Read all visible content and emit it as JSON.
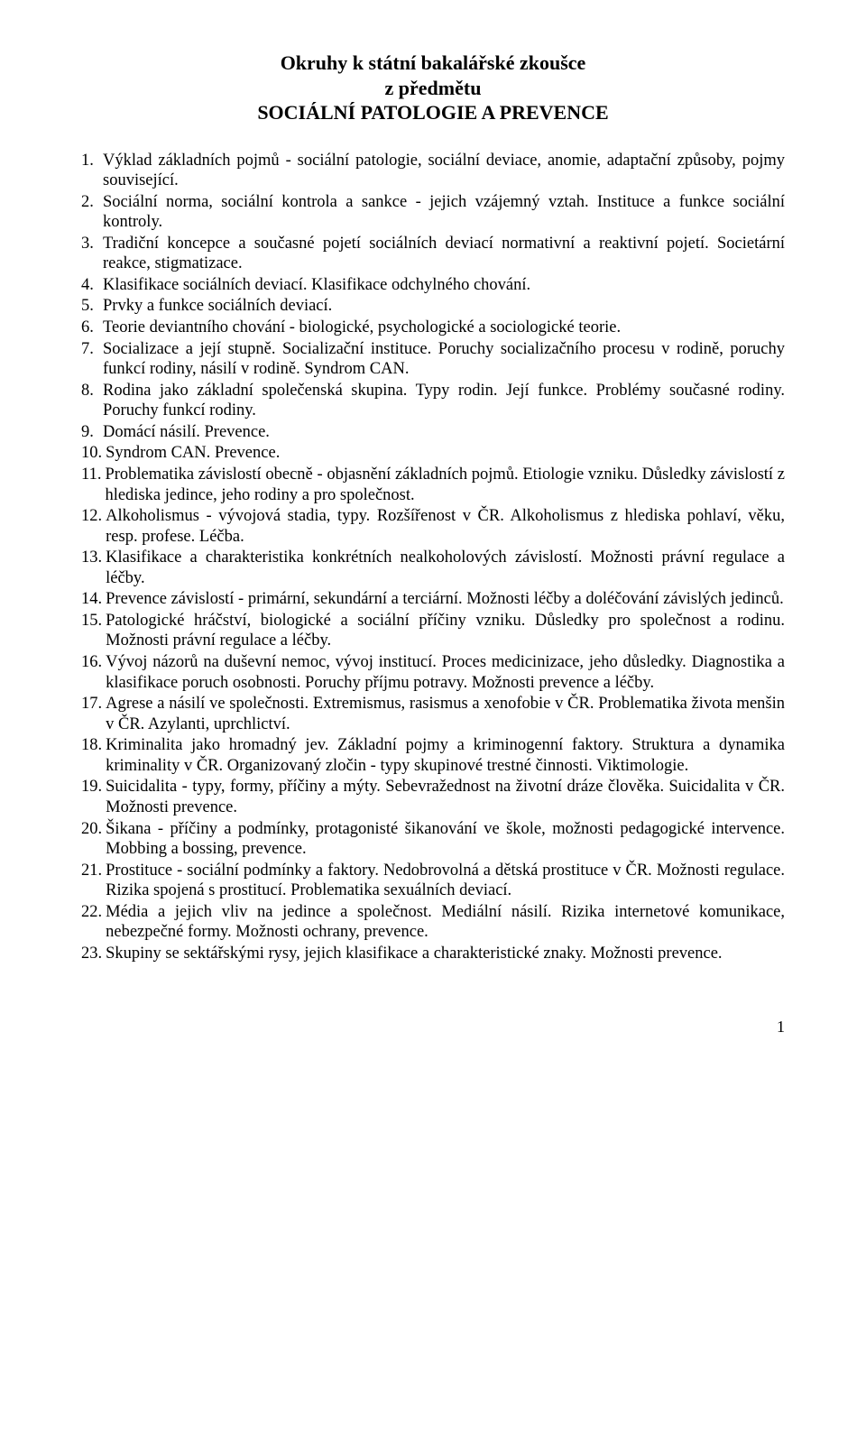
{
  "title": {
    "line1": "Okruhy k státní bakalářské zkoušce",
    "line2": "z předmětu",
    "line3": "SOCIÁLNÍ PATOLOGIE A PREVENCE"
  },
  "items": [
    {
      "n": "1.",
      "t": "Výklad základních pojmů -  sociální patologie, sociální deviace, anomie, adaptační způsoby, pojmy související."
    },
    {
      "n": "2.",
      "t": "Sociální norma, sociální kontrola a sankce - jejich vzájemný vztah. Instituce a funkce sociální kontroly."
    },
    {
      "n": "3.",
      "t": "Tradiční koncepce a současné pojetí sociálních deviací normativní a reaktivní pojetí. Societární reakce, stigmatizace."
    },
    {
      "n": "4.",
      "t": "Klasifikace sociálních deviací. Klasifikace odchylného chování."
    },
    {
      "n": "5.",
      "t": "Prvky a funkce sociálních deviací."
    },
    {
      "n": "6.",
      "t": "Teorie deviantního chování - biologické, psychologické a sociologické teorie."
    },
    {
      "n": "7.",
      "t": "Socializace a její stupně. Socializační instituce. Poruchy socializačního procesu v rodině, poruchy funkcí rodiny, násilí v rodině. Syndrom CAN."
    },
    {
      "n": "8.",
      "t": "Rodina jako základní společenská skupina. Typy rodin. Její funkce. Problémy současné rodiny. Poruchy funkcí rodiny."
    },
    {
      "n": "9.",
      "t": "Domácí násilí. Prevence."
    },
    {
      "n": "10.",
      "t": "Syndrom CAN. Prevence."
    },
    {
      "n": "11.",
      "t": "Problematika závislostí obecně - objasnění základních pojmů. Etiologie vzniku. Důsledky závislostí z hlediska jedince, jeho rodiny a pro společnost."
    },
    {
      "n": "12.",
      "t": "Alkoholismus - vývojová stadia, typy. Rozšířenost v ČR. Alkoholismus z hlediska pohlaví, věku, resp. profese. Léčba."
    },
    {
      "n": "13.",
      "t": "Klasifikace a charakteristika konkrétních nealkoholových závislostí. Možnosti právní regulace a léčby."
    },
    {
      "n": "14.",
      "t": "Prevence závislostí - primární, sekundární a terciární. Možnosti léčby a doléčování závislých jedinců."
    },
    {
      "n": "15.",
      "t": "Patologické hráčství, biologické a sociální příčiny vzniku. Důsledky pro společnost a rodinu. Možnosti právní regulace a léčby."
    },
    {
      "n": "16.",
      "t": "Vývoj názorů na duševní nemoc, vývoj institucí. Proces medicinizace, jeho důsledky. Diagnostika a klasifikace poruch osobnosti. Poruchy příjmu potravy. Možnosti prevence a léčby."
    },
    {
      "n": "17.",
      "t": "Agrese a násilí ve společnosti. Extremismus, rasismus a xenofobie v ČR. Problematika života menšin v ČR. Azylanti, uprchlictví."
    },
    {
      "n": "18.",
      "t": "Kriminalita jako hromadný jev. Základní pojmy a kriminogenní faktory. Struktura a dynamika kriminality v ČR. Organizovaný zločin - typy skupinové trestné činnosti. Viktimologie."
    },
    {
      "n": "19.",
      "t": "Suicidalita - typy, formy, příčiny a mýty.  Sebevražednost na životní dráze člověka. Suicidalita v ČR. Možnosti prevence."
    },
    {
      "n": "20.",
      "t": "Šikana - příčiny a podmínky, protagonisté šikanování ve škole, možnosti pedagogické intervence. Mobbing a bossing, prevence."
    },
    {
      "n": "21.",
      "t": "Prostituce - sociální podmínky a faktory. Nedobrovolná a dětská prostituce v ČR. Možnosti regulace. Rizika spojená s prostitucí. Problematika sexuálních deviací."
    },
    {
      "n": "22.",
      "t": "Média a jejich vliv na jedince a společnost. Mediální násilí. Rizika internetové komunikace, nebezpečné formy. Možnosti ochrany, prevence."
    },
    {
      "n": "23.",
      "t": "Skupiny se sektářskými rysy, jejich klasifikace a charakteristické znaky. Možnosti prevence."
    }
  ],
  "pagenum": "1"
}
